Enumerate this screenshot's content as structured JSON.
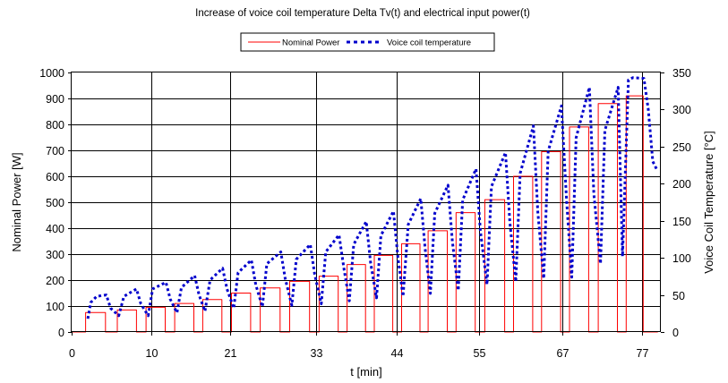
{
  "chart_data": {
    "type": "line",
    "title": "Increase of voice coil temperature Delta Tv(t) and electrical input power(t)",
    "xlabel": "t [min]",
    "ylabel_left": "Nominal Power [W]",
    "ylabel_right": "Voice Coil Temperature [°C]",
    "xlim": [
      0,
      80
    ],
    "ylim_left": [
      0,
      1000
    ],
    "ylim_right": [
      0,
      350
    ],
    "x_ticks": [
      {
        "value": 0,
        "label": "0"
      },
      {
        "value": 10.8,
        "label": "10"
      },
      {
        "value": 21.5,
        "label": "21"
      },
      {
        "value": 33.2,
        "label": "33"
      },
      {
        "value": 44.1,
        "label": "44"
      },
      {
        "value": 55.3,
        "label": "55"
      },
      {
        "value": 66.6,
        "label": "67"
      },
      {
        "value": 77.4,
        "label": "77"
      }
    ],
    "y_ticks_left": [
      "0",
      "100",
      "200",
      "300",
      "400",
      "500",
      "600",
      "700",
      "800",
      "900",
      "1000"
    ],
    "y_ticks_right": [
      "0",
      "50",
      "100",
      "150",
      "200",
      "250",
      "300",
      "350"
    ],
    "grid": true,
    "legend_position": "top-center",
    "series": [
      {
        "name": "Nominal Power",
        "axis": "left",
        "color": "#ff0000",
        "style": "solid",
        "x": [
          0,
          1.9,
          1.9,
          4.6,
          4.6,
          6.2,
          6.2,
          8.8,
          8.8,
          10.1,
          10.1,
          12.7,
          12.7,
          14.0,
          14.0,
          16.6,
          16.6,
          17.8,
          17.8,
          20.4,
          20.4,
          21.7,
          21.7,
          24.3,
          24.3,
          25.6,
          25.6,
          28.3,
          28.3,
          29.6,
          29.6,
          32.3,
          32.3,
          33.6,
          33.6,
          36.2,
          36.2,
          37.4,
          37.4,
          39.9,
          39.9,
          41.1,
          41.1,
          43.6,
          43.6,
          44.8,
          44.8,
          47.3,
          47.3,
          48.4,
          48.4,
          51.0,
          51.0,
          52.2,
          52.2,
          54.8,
          54.8,
          56.1,
          56.1,
          58.8,
          58.8,
          60.0,
          60.0,
          62.6,
          62.6,
          63.8,
          63.8,
          66.4,
          66.4,
          67.6,
          67.6,
          70.2,
          70.2,
          71.5,
          71.5,
          74.1,
          74.1,
          75.3,
          75.3,
          77.6,
          77.6,
          79.6
        ],
        "y": [
          0,
          0,
          75,
          75,
          0,
          0,
          85,
          85,
          0,
          0,
          95,
          95,
          0,
          0,
          110,
          110,
          0,
          0,
          125,
          125,
          0,
          0,
          150,
          150,
          0,
          0,
          170,
          170,
          0,
          0,
          195,
          195,
          0,
          0,
          215,
          215,
          0,
          0,
          260,
          260,
          0,
          0,
          295,
          295,
          0,
          0,
          340,
          340,
          0,
          0,
          390,
          390,
          0,
          0,
          460,
          460,
          0,
          0,
          510,
          510,
          0,
          0,
          600,
          600,
          0,
          0,
          695,
          695,
          0,
          0,
          790,
          790,
          0,
          0,
          880,
          880,
          0,
          0,
          910,
          910,
          0,
          0
        ]
      },
      {
        "name": "Voice coil temperature",
        "axis": "right",
        "color": "#0000cc",
        "style": "dotted",
        "x": [
          2.2,
          2.6,
          3.4,
          4.7,
          5.3,
          6.4,
          7.1,
          8.8,
          9.4,
          10.4,
          11.0,
          12.8,
          13.4,
          14.3,
          14.9,
          16.7,
          17.3,
          18.1,
          18.8,
          20.5,
          21.1,
          22.0,
          22.6,
          24.4,
          25.0,
          25.9,
          26.5,
          28.4,
          29.0,
          29.9,
          30.5,
          32.4,
          33.0,
          33.9,
          34.5,
          36.3,
          37.0,
          37.7,
          38.3,
          40.0,
          40.6,
          41.4,
          42.0,
          43.7,
          44.3,
          45.0,
          45.7,
          47.4,
          48.0,
          48.7,
          49.3,
          51.1,
          51.7,
          52.5,
          53.1,
          54.9,
          55.5,
          56.4,
          57.0,
          58.9,
          59.5,
          60.3,
          60.9,
          62.7,
          63.3,
          64.1,
          64.7,
          66.5,
          67.2,
          67.9,
          68.5,
          70.3,
          70.9,
          71.8,
          72.4,
          74.2,
          74.8,
          75.6,
          76.2,
          77.7,
          78.3,
          78.9,
          79.4
        ],
        "y": [
          18,
          40,
          48,
          50,
          32,
          22,
          48,
          58,
          38,
          22,
          58,
          67,
          44,
          26,
          60,
          76,
          50,
          28,
          70,
          86,
          58,
          32,
          80,
          97,
          64,
          34,
          92,
          108,
          72,
          36,
          98,
          118,
          78,
          38,
          108,
          131,
          84,
          42,
          118,
          149,
          93,
          46,
          130,
          163,
          100,
          48,
          145,
          180,
          112,
          52,
          160,
          198,
          122,
          56,
          178,
          220,
          136,
          64,
          196,
          242,
          148,
          68,
          214,
          278,
          162,
          72,
          244,
          305,
          178,
          74,
          262,
          330,
          186,
          92,
          272,
          330,
          102,
          340,
          343,
          342,
          300,
          230,
          220
        ]
      }
    ]
  }
}
